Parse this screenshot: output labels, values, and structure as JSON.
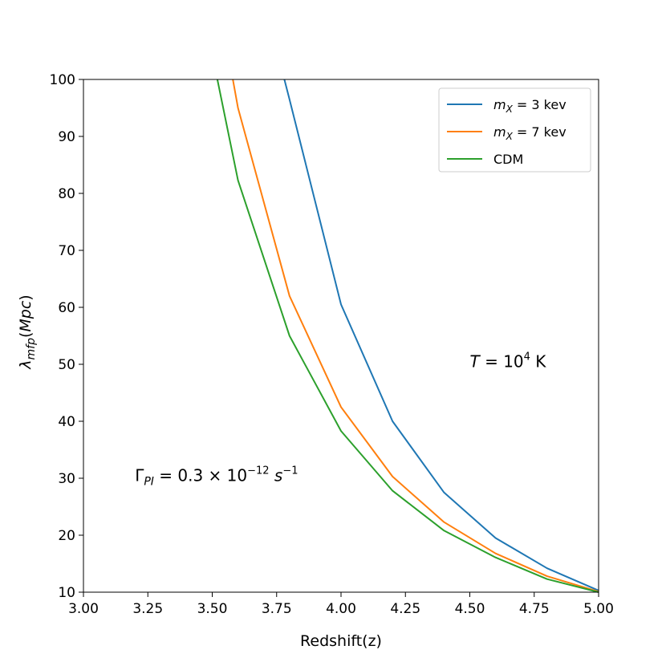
{
  "chart_data": {
    "type": "line",
    "xlabel": "Redshift(z)",
    "ylabel": "λ_mfp(Mpc)",
    "xlim": [
      3.0,
      5.0
    ],
    "ylim": [
      10,
      100
    ],
    "xticks": [
      3.0,
      3.25,
      3.5,
      3.75,
      4.0,
      4.25,
      4.5,
      4.75,
      5.0
    ],
    "yticks": [
      10,
      20,
      30,
      40,
      50,
      60,
      70,
      80,
      90,
      100
    ],
    "xtick_labels": [
      "3.00",
      "3.25",
      "3.50",
      "3.75",
      "4.00",
      "4.25",
      "4.50",
      "4.75",
      "5.00"
    ],
    "ytick_labels": [
      "10",
      "20",
      "30",
      "40",
      "50",
      "60",
      "70",
      "80",
      "90",
      "100"
    ],
    "grid": false,
    "legend_position": "top-right",
    "series": [
      {
        "name": "m_X = 3 kev",
        "color": "#1f77b4",
        "x": [
          3.78,
          3.8,
          4.0,
          4.2,
          4.4,
          4.6,
          4.8,
          5.0
        ],
        "y": [
          100,
          96.5,
          60.5,
          40,
          27.5,
          19.5,
          14.2,
          10.3
        ]
      },
      {
        "name": "m_X = 7 kev",
        "color": "#ff7f0e",
        "x": [
          3.58,
          3.6,
          3.8,
          4.0,
          4.2,
          4.4,
          4.6,
          4.8,
          5.0
        ],
        "y": [
          100,
          95,
          62,
          42.5,
          30.3,
          22.3,
          16.8,
          12.8,
          10.1
        ]
      },
      {
        "name": "CDM",
        "color": "#2ca02c",
        "x": [
          3.52,
          3.6,
          3.8,
          4.0,
          4.2,
          4.4,
          4.6,
          4.8,
          5.0
        ],
        "y": [
          100,
          82.3,
          55,
          38.3,
          27.8,
          20.8,
          16.1,
          12.3,
          10.0
        ]
      }
    ],
    "annotations": [
      {
        "id": "temp",
        "text": "T = 10⁴ K",
        "x": 4.5,
        "y": 50.5
      },
      {
        "id": "gamma",
        "text": "Γ_PI = 0.3 × 10⁻¹² s⁻¹",
        "x": 3.2,
        "y": 30.5
      }
    ]
  }
}
